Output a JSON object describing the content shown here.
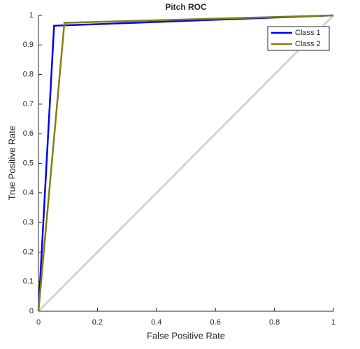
{
  "chart_data": {
    "type": "line",
    "title": "Pitch ROC",
    "x_label": "False Positive Rate",
    "y_label": "True Positive Rate",
    "series": [
      {
        "name": "Class 1",
        "color": "#0000ee",
        "x": [
          0,
          0.053,
          1
        ],
        "values": [
          0,
          0.965,
          1
        ]
      },
      {
        "name": "Class 2",
        "color": "#808010",
        "x": [
          0,
          0.088,
          1
        ],
        "values": [
          0,
          0.975,
          1
        ]
      }
    ],
    "xlim": [
      0,
      1
    ],
    "ylim": [
      0,
      1
    ],
    "xticks": [
      0,
      0.2,
      0.4,
      0.6,
      0.8,
      1
    ],
    "yticks": [
      0,
      0.1,
      0.2,
      0.3,
      0.4,
      0.5,
      0.6,
      0.7,
      0.8,
      0.9,
      1
    ],
    "legend": "upper-right"
  }
}
